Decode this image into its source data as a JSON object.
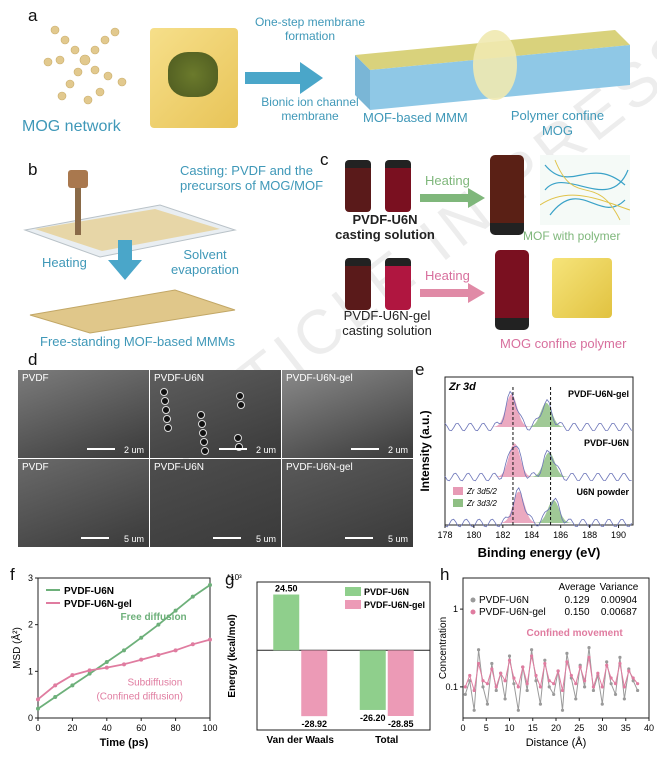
{
  "panels": {
    "a": {
      "label": "a",
      "mog_network": "MOG network",
      "one_step": "One-step membrane formation",
      "bionic": "Bionic ion channel membrane",
      "mmm": "MOF-based MMM",
      "polymer_confine": "Polymer confine MOG"
    },
    "b": {
      "label": "b",
      "casting": "Casting: PVDF and the precursors of MOG/MOF",
      "heating": "Heating",
      "solvent": "Solvent evaporation",
      "free_standing": "Free-standing MOF-based MMMs"
    },
    "c": {
      "label": "c",
      "u6n_solution": "PVDF-U6N casting solution",
      "gel_solution": "PVDF-U6N-gel casting solution",
      "heating_top": "Heating",
      "heating_bottom": "Heating",
      "mof_with_polymer": "MOF with polymer",
      "mog_confine": "MOG confine polymer"
    },
    "d": {
      "label": "d",
      "tiles": [
        {
          "label": "PVDF",
          "scale": "2 um"
        },
        {
          "label": "PVDF-U6N",
          "scale": "2 um"
        },
        {
          "label": "PVDF-U6N-gel",
          "scale": "2 um"
        },
        {
          "label": "PVDF",
          "scale": "5 um"
        },
        {
          "label": "PVDF-U6N",
          "scale": "5 um"
        },
        {
          "label": "PVDF-U6N-gel",
          "scale": "5 um"
        }
      ]
    },
    "e": {
      "label": "e"
    },
    "f": {
      "label": "f"
    },
    "g": {
      "label": "g"
    },
    "h": {
      "label": "h"
    }
  },
  "watermark": "ARTICLE IN PRESS",
  "chart_data": [
    {
      "id": "e",
      "type": "line",
      "title": "Zr 3d",
      "xlabel": "Binding energy (eV)",
      "ylabel": "Intensity (a.u.)",
      "xlim": [
        178,
        191
      ],
      "xticks": [
        178,
        180,
        182,
        184,
        186,
        188,
        190
      ],
      "series": [
        {
          "name": "PVDF-U6N-gel",
          "peaks": [
            182.6,
            185.0
          ]
        },
        {
          "name": "PVDF-U6N",
          "peaks": [
            182.8,
            185.2
          ]
        },
        {
          "name": "U6N powder",
          "peaks": [
            183.1,
            185.5
          ]
        }
      ],
      "legend": [
        "Zr 3d5/2",
        "Zr 3d3/2"
      ],
      "colors": {
        "d52": "#e79ab5",
        "d32": "#8fbf84"
      }
    },
    {
      "id": "f",
      "type": "line",
      "xlabel": "Time (ps)",
      "ylabel": "MSD (Å²)",
      "xlim": [
        0,
        100
      ],
      "ylim": [
        0,
        3
      ],
      "xticks": [
        0,
        20,
        40,
        60,
        80,
        100
      ],
      "yticks": [
        0,
        1,
        2,
        3
      ],
      "series": [
        {
          "name": "PVDF-U6N",
          "color": "#6db07a",
          "x": [
            0,
            10,
            20,
            30,
            40,
            50,
            60,
            70,
            80,
            90,
            100
          ],
          "values": [
            0.2,
            0.45,
            0.7,
            0.95,
            1.2,
            1.45,
            1.72,
            2.0,
            2.3,
            2.6,
            2.85
          ]
        },
        {
          "name": "PVDF-U6N-gel",
          "color": "#e07ca0",
          "x": [
            0,
            10,
            20,
            30,
            40,
            50,
            60,
            70,
            80,
            90,
            100
          ],
          "values": [
            0.4,
            0.7,
            0.92,
            1.02,
            1.08,
            1.15,
            1.25,
            1.35,
            1.45,
            1.58,
            1.68
          ]
        }
      ],
      "annotations": [
        "Free diffusion",
        "Subdiffusion",
        "(Confined diffusion)"
      ]
    },
    {
      "id": "g",
      "type": "bar",
      "ylabel": "Energy (kcal/mol)",
      "yunit": "*10³",
      "categories": [
        "Van der Waals",
        "Total"
      ],
      "ylim": [
        -35,
        30
      ],
      "yticks": [
        -30,
        -20,
        -10,
        0,
        10,
        20,
        30
      ],
      "series": [
        {
          "name": "PVDF-U6N",
          "color": "#8fcf8c",
          "values": [
            24.5,
            -26.2
          ]
        },
        {
          "name": "PVDF-U6N-gel",
          "color": "#ec9ab6",
          "values": [
            -28.92,
            -28.85
          ]
        }
      ],
      "labels": [
        [
          "24.50",
          "-26.20"
        ],
        [
          "-28.92",
          "-28.85"
        ]
      ]
    },
    {
      "id": "h",
      "type": "line",
      "xlabel": "Distance (Å)",
      "ylabel": "Concentration",
      "xlim": [
        0,
        40
      ],
      "xticks": [
        0,
        5,
        10,
        15,
        20,
        25,
        30,
        35,
        40
      ],
      "yticks": [
        0.1,
        1
      ],
      "table_header": [
        "",
        "Average",
        "Variance"
      ],
      "table_rows": [
        [
          "PVDF-U6N",
          "0.129",
          "0.00904"
        ],
        [
          "PVDF-U6N-gel",
          "0.150",
          "0.00687"
        ]
      ],
      "annotation": "Confined movement",
      "series": [
        {
          "name": "PVDF-U6N",
          "color": "#9a9a9a",
          "values": [
            0.08,
            0.12,
            0.05,
            0.3,
            0.1,
            0.06,
            0.2,
            0.09,
            0.15,
            0.07,
            0.25,
            0.11,
            0.05,
            0.18,
            0.09,
            0.3,
            0.12,
            0.06,
            0.22,
            0.1,
            0.08,
            0.16,
            0.05,
            0.27,
            0.13,
            0.07,
            0.19,
            0.1,
            0.32,
            0.09,
            0.14,
            0.06,
            0.21,
            0.11,
            0.08,
            0.24,
            0.07,
            0.17,
            0.12,
            0.09
          ]
        },
        {
          "name": "PVDF-U6N-gel",
          "color": "#e07ca0",
          "values": [
            0.1,
            0.14,
            0.09,
            0.2,
            0.12,
            0.11,
            0.17,
            0.1,
            0.15,
            0.12,
            0.22,
            0.13,
            0.1,
            0.18,
            0.11,
            0.25,
            0.14,
            0.1,
            0.2,
            0.12,
            0.11,
            0.16,
            0.09,
            0.21,
            0.14,
            0.11,
            0.18,
            0.12,
            0.24,
            0.1,
            0.15,
            0.1,
            0.19,
            0.13,
            0.11,
            0.2,
            0.1,
            0.16,
            0.13,
            0.11
          ]
        }
      ]
    }
  ]
}
